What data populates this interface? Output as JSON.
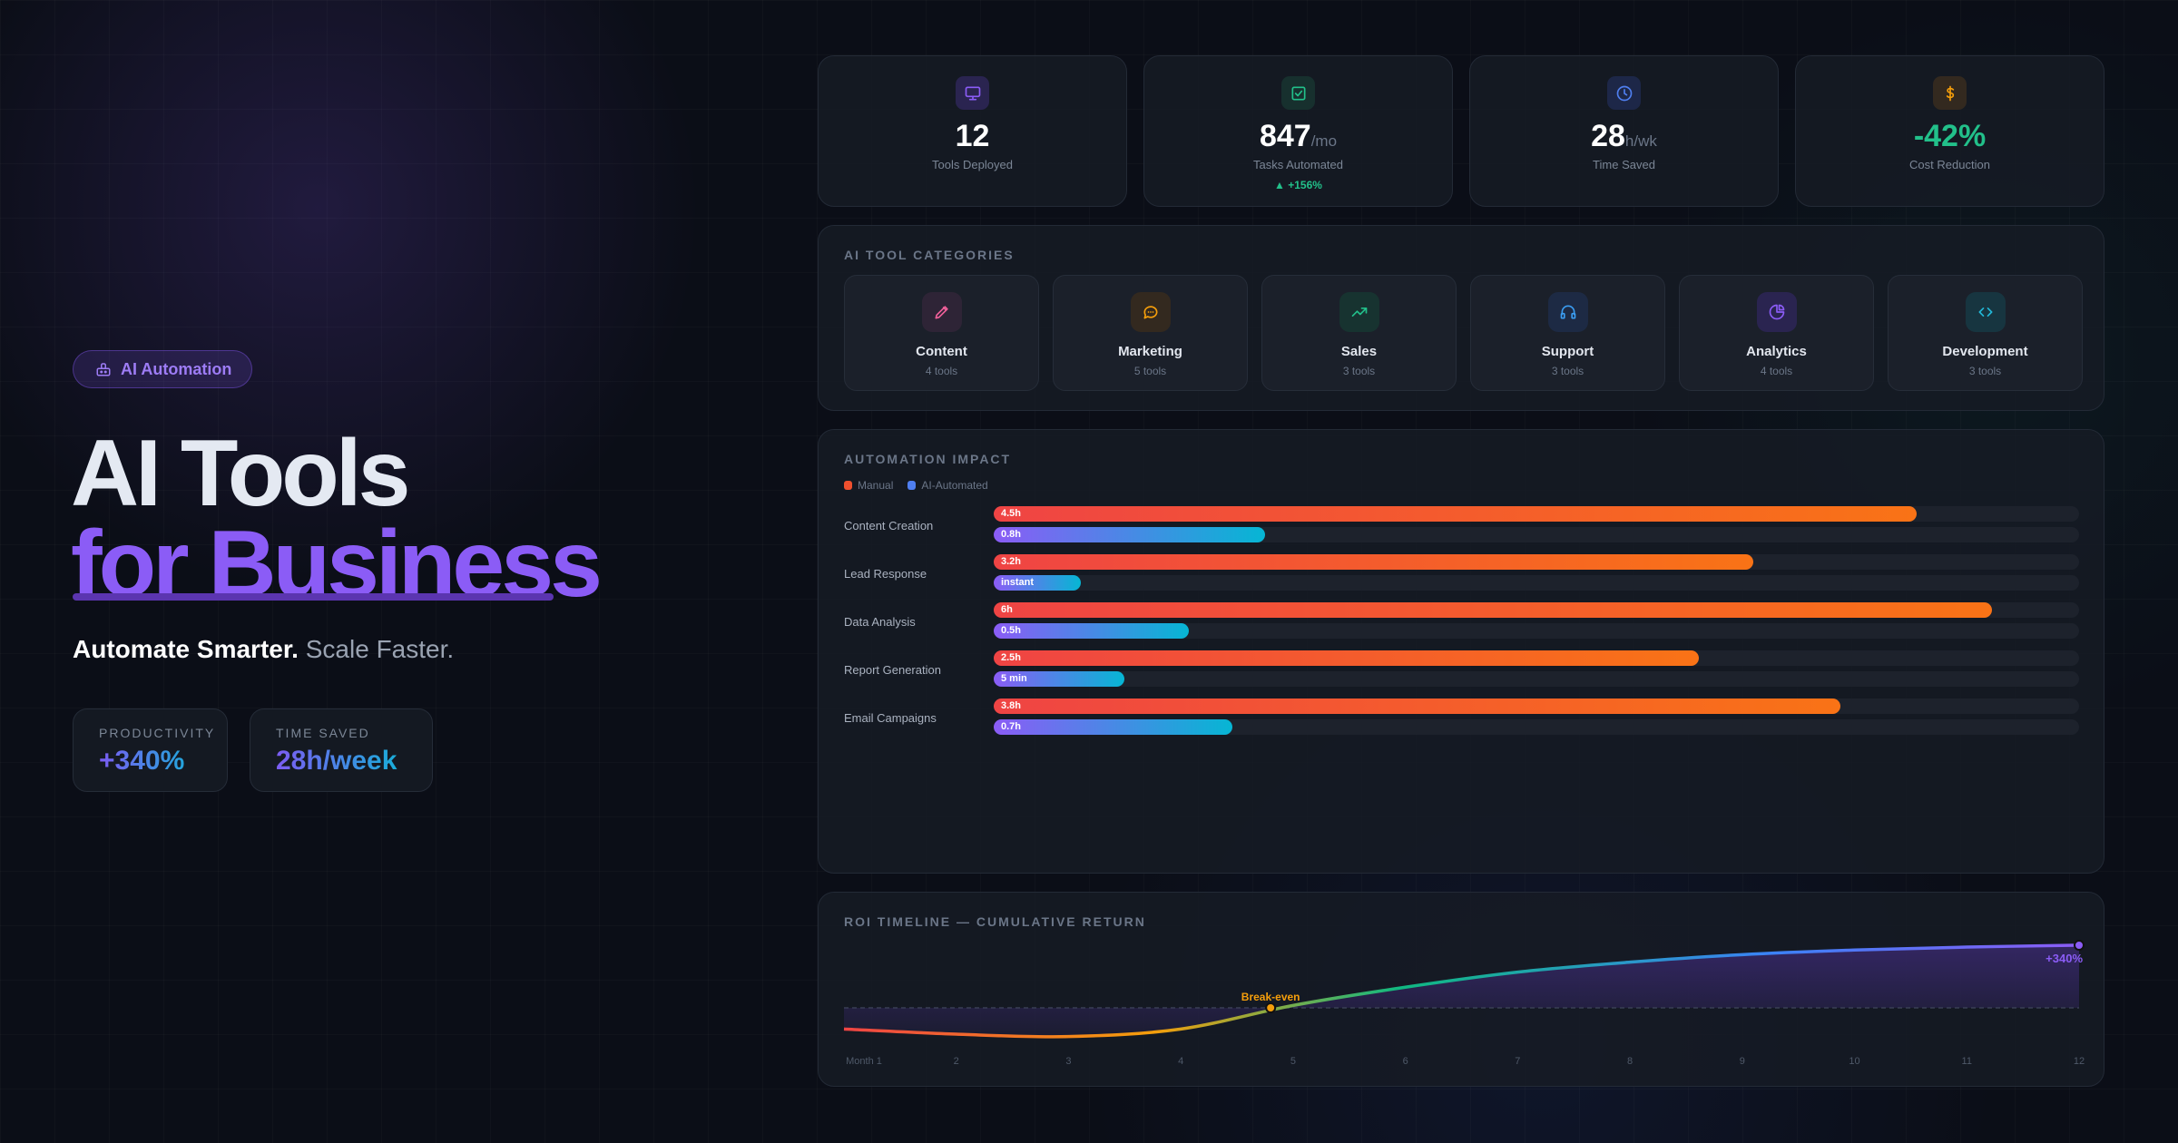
{
  "hero": {
    "badge": "AI Automation",
    "title_line1": "AI Tools",
    "title_line2": "for Business",
    "tagline_strong": "Automate Smarter.",
    "tagline_rest": " Scale Faster.",
    "stats": [
      {
        "label": "PRODUCTIVITY",
        "value": "+340%"
      },
      {
        "label": "TIME SAVED",
        "value": "28h/week"
      }
    ]
  },
  "kpis": [
    {
      "icon": "monitor-icon",
      "value": "12",
      "unit": "",
      "label": "Tools Deployed",
      "color": "#8b5cf6",
      "bg": "#2a2450"
    },
    {
      "icon": "check-square-icon",
      "value": "847",
      "unit": "/mo",
      "label": "Tasks Automated",
      "trend": "▲ +156%",
      "color": "#22c08a",
      "bg": "#17302e"
    },
    {
      "icon": "clock-icon",
      "value": "28",
      "unit": "h/wk",
      "label": "Time Saved",
      "color": "#4f7ff0",
      "bg": "#1d2748"
    },
    {
      "icon": "dollar-icon",
      "value": "-42%",
      "unit": "",
      "label": "Cost Reduction",
      "color": "#f59e0b",
      "bg": "#33291f",
      "valueColor": "#22c08a"
    }
  ],
  "categories": {
    "title": "AI TOOL CATEGORIES",
    "items": [
      {
        "icon": "pen-icon",
        "name": "Content",
        "count": "4 tools",
        "color": "#f0609a",
        "bg": "#2e2436"
      },
      {
        "icon": "chat-icon",
        "name": "Marketing",
        "count": "5 tools",
        "color": "#f59e0b",
        "bg": "#33291f"
      },
      {
        "icon": "trend-up-icon",
        "name": "Sales",
        "count": "3 tools",
        "color": "#22c08a",
        "bg": "#173330"
      },
      {
        "icon": "headphones-icon",
        "name": "Support",
        "count": "3 tools",
        "color": "#3b9cf0",
        "bg": "#1d2a44"
      },
      {
        "icon": "pie-chart-icon",
        "name": "Analytics",
        "count": "4 tools",
        "color": "#8b5cf6",
        "bg": "#2a2450"
      },
      {
        "icon": "code-icon",
        "name": "Development",
        "count": "3 tools",
        "color": "#22b8d8",
        "bg": "#173540"
      }
    ]
  },
  "automation": {
    "title": "AUTOMATION IMPACT",
    "legend": [
      "Manual",
      "AI-Automated"
    ],
    "rows": [
      {
        "label": "Content Creation",
        "manual": "4.5h",
        "manual_pct": 85,
        "ai": "0.8h",
        "ai_pct": 25
      },
      {
        "label": "Lead Response",
        "manual": "3.2h",
        "manual_pct": 70,
        "ai": "instant",
        "ai_pct": 8
      },
      {
        "label": "Data Analysis",
        "manual": "6h",
        "manual_pct": 92,
        "ai": "0.5h",
        "ai_pct": 18
      },
      {
        "label": "Report Generation",
        "manual": "2.5h",
        "manual_pct": 65,
        "ai": "5 min",
        "ai_pct": 12
      },
      {
        "label": "Email Campaigns",
        "manual": "3.8h",
        "manual_pct": 78,
        "ai": "0.7h",
        "ai_pct": 22
      }
    ]
  },
  "chart_data": {
    "type": "line",
    "title": "ROI TIMELINE — CUMULATIVE RETURN",
    "x": [
      1,
      2,
      3,
      4,
      5,
      6,
      7,
      8,
      9,
      10,
      11,
      12
    ],
    "xticklabels": [
      "Month 1",
      "2",
      "3",
      "4",
      "5",
      "6",
      "7",
      "8",
      "9",
      "10",
      "11",
      "12"
    ],
    "series": [
      {
        "name": "Cumulative ROI %",
        "values": [
          -115,
          -143,
          -156,
          -115,
          13,
          112,
          194,
          248,
          289,
          314,
          330,
          340
        ]
      }
    ],
    "ylim": [
      -200,
      360
    ],
    "annotations": [
      {
        "text": "Break-even",
        "x": 4.8,
        "y": 0
      },
      {
        "text": "+340%",
        "x": 12,
        "y": 340
      }
    ]
  }
}
